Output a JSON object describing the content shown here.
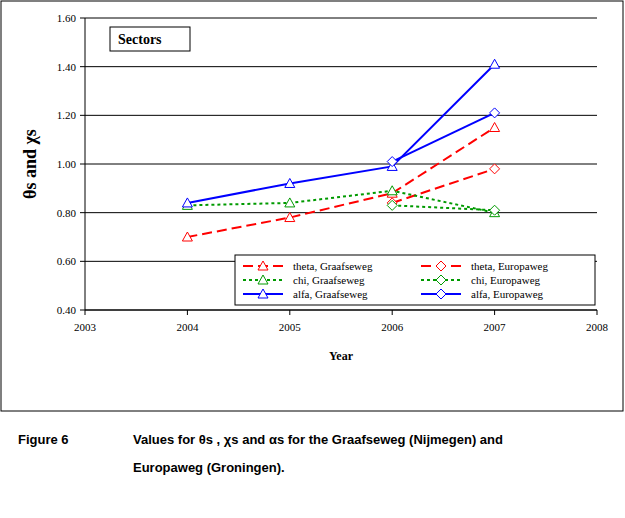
{
  "chart_data": {
    "type": "line",
    "annotations": [
      "Sectors"
    ],
    "y_label": "θs and χs",
    "x_label": "Year",
    "figure_label": "Figure 6",
    "caption": "Values for θs , χs and αs for the Graafseweg (Nijmegen) and Europaweg (Groningen).",
    "x": [
      2004,
      2005,
      2006,
      2007
    ],
    "series": [
      {
        "name": "theta, Graafseweg",
        "color": "#ff0000",
        "line_style": "dashed",
        "marker": "triangle",
        "values": [
          0.7,
          0.78,
          0.88,
          1.15
        ]
      },
      {
        "name": "theta, Europaweg",
        "color": "#ff0000",
        "line_style": "dashed",
        "marker": "diamond",
        "values": [
          null,
          null,
          0.84,
          0.98
        ]
      },
      {
        "name": "chi, Graafseweg",
        "color": "#009a00",
        "line_style": "dotted",
        "marker": "triangle",
        "values": [
          0.83,
          0.84,
          0.89,
          0.8
        ]
      },
      {
        "name": "chi, Europaweg",
        "color": "#009a00",
        "line_style": "dotted",
        "marker": "diamond",
        "values": [
          null,
          null,
          0.83,
          0.81
        ]
      },
      {
        "name": "alfa, Graafseweg",
        "color": "#0000ff",
        "line_style": "solid",
        "marker": "triangle",
        "values": [
          0.84,
          0.92,
          0.99,
          1.41
        ]
      },
      {
        "name": "alfa, Europaweg",
        "color": "#0000ff",
        "line_style": "solid",
        "marker": "diamond",
        "values": [
          null,
          null,
          1.01,
          1.21
        ]
      }
    ],
    "xlim": [
      2003,
      2008
    ],
    "xticks": [
      2003,
      2004,
      2005,
      2006,
      2007,
      2008
    ],
    "ylim": [
      0.4,
      1.6
    ],
    "yticks": [
      {
        "value": 0.4,
        "label": "0.40"
      },
      {
        "value": 0.6,
        "label": "0.60"
      },
      {
        "value": 0.8,
        "label": "0.80"
      },
      {
        "value": 1.0,
        "label": "1.00"
      },
      {
        "value": 1.2,
        "label": "1.20"
      },
      {
        "value": 1.4,
        "label": "1.40"
      },
      {
        "value": 1.6,
        "label": "1.60"
      }
    ],
    "grid": true,
    "legend": "lower right"
  }
}
